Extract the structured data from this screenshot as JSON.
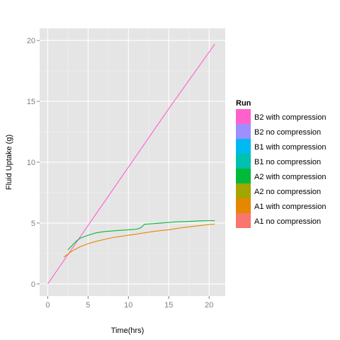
{
  "chart_data": {
    "type": "line",
    "xlabel": "Time(hrs)",
    "ylabel": "Fluid Uptake (g)",
    "xlim": [
      -1,
      22
    ],
    "ylim": [
      -1,
      21
    ],
    "xticks": [
      0,
      5,
      10,
      15,
      20
    ],
    "yticks": [
      0,
      5,
      10,
      15,
      20
    ],
    "grid": true,
    "legend": {
      "title": "Run",
      "position": "right",
      "entries": [
        {
          "name": "B2 with compression",
          "color": "#FF61CC"
        },
        {
          "name": "B2 no compression",
          "color": "#9E8FFF"
        },
        {
          "name": "B1 with compression",
          "color": "#00B9F0"
        },
        {
          "name": "B1 no compression",
          "color": "#00C0B0"
        },
        {
          "name": "A2 with compression",
          "color": "#00BA38"
        },
        {
          "name": "A2 no compression",
          "color": "#A3A500"
        },
        {
          "name": "A1 with compression",
          "color": "#E58700"
        },
        {
          "name": "A1 no compression",
          "color": "#F8766D"
        }
      ]
    },
    "series": [
      {
        "name": "B2 with compression",
        "color": "#FF61CC",
        "x": [
          0,
          5,
          10,
          15,
          20.7
        ],
        "y": [
          0,
          4.8,
          9.6,
          14.4,
          19.7
        ]
      },
      {
        "name": "A2 with compression",
        "color": "#00BA38",
        "x": [
          2.5,
          3.5,
          4,
          5,
          6,
          7,
          8,
          9,
          10,
          11,
          11.5,
          12,
          13,
          14,
          15,
          16,
          17,
          18,
          19,
          20,
          20.7
        ],
        "y": [
          2.8,
          3.5,
          3.75,
          4.0,
          4.2,
          4.3,
          4.35,
          4.4,
          4.45,
          4.5,
          4.6,
          4.9,
          4.95,
          5.0,
          5.05,
          5.1,
          5.12,
          5.15,
          5.18,
          5.2,
          5.2
        ]
      },
      {
        "name": "A1 with compression",
        "color": "#E58700",
        "x": [
          2,
          3,
          4,
          5,
          6,
          7,
          8,
          9,
          10,
          11,
          12,
          13,
          14,
          15,
          16,
          17,
          18,
          19,
          20,
          20.7
        ],
        "y": [
          2.2,
          2.7,
          3.05,
          3.3,
          3.5,
          3.65,
          3.8,
          3.9,
          4.0,
          4.1,
          4.2,
          4.3,
          4.38,
          4.45,
          4.55,
          4.65,
          4.72,
          4.8,
          4.88,
          4.92
        ]
      }
    ]
  }
}
